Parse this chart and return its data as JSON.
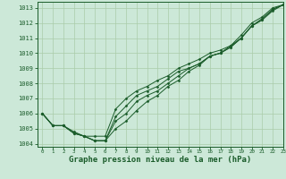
{
  "bg_color": "#cce8d8",
  "grid_color": "#aaccaa",
  "line_color": "#1a5c2a",
  "xlabel": "Graphe pression niveau de la mer (hPa)",
  "xlabel_fontsize": 6.5,
  "ylim": [
    1003.8,
    1013.4
  ],
  "xlim": [
    -0.5,
    23
  ],
  "yticks": [
    1004,
    1005,
    1006,
    1007,
    1008,
    1009,
    1010,
    1011,
    1012,
    1013
  ],
  "xticks": [
    0,
    1,
    2,
    3,
    4,
    5,
    6,
    7,
    8,
    9,
    10,
    11,
    12,
    13,
    14,
    15,
    16,
    17,
    18,
    19,
    20,
    21,
    22,
    23
  ],
  "series": [
    [
      1006.0,
      1005.2,
      1005.2,
      1004.8,
      1004.5,
      1004.2,
      1004.2,
      1005.8,
      1006.5,
      1007.2,
      1007.5,
      1007.8,
      1008.3,
      1008.8,
      1009.0,
      1009.3,
      1009.8,
      1010.0,
      1010.5,
      1011.2,
      1012.0,
      1012.4,
      1013.0,
      1013.2
    ],
    [
      1006.0,
      1005.2,
      1005.2,
      1004.7,
      1004.5,
      1004.5,
      1004.5,
      1006.3,
      1007.0,
      1007.5,
      1007.8,
      1008.2,
      1008.5,
      1009.0,
      1009.3,
      1009.6,
      1010.0,
      1010.2,
      1010.5,
      1011.0,
      1011.8,
      1012.2,
      1012.8,
      1013.2
    ],
    [
      1006.0,
      1005.2,
      1005.2,
      1004.7,
      1004.5,
      1004.2,
      1004.2,
      1005.5,
      1006.0,
      1006.8,
      1007.2,
      1007.5,
      1008.0,
      1008.5,
      1009.0,
      1009.3,
      1009.8,
      1010.0,
      1010.4,
      1011.0,
      1011.8,
      1012.3,
      1012.9,
      1013.2
    ],
    [
      1006.0,
      1005.2,
      1005.2,
      1004.7,
      1004.5,
      1004.2,
      1004.2,
      1005.0,
      1005.5,
      1006.2,
      1006.8,
      1007.2,
      1007.8,
      1008.2,
      1008.8,
      1009.2,
      1009.8,
      1010.0,
      1010.4,
      1011.0,
      1011.8,
      1012.2,
      1012.9,
      1013.2
    ]
  ]
}
